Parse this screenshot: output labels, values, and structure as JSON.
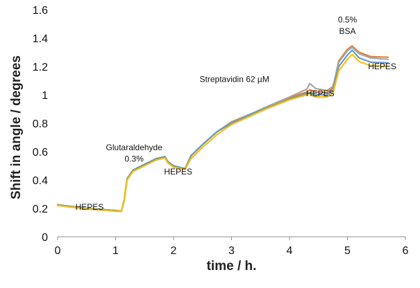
{
  "chart_data": {
    "type": "line",
    "title": "",
    "xlabel": "time / h.",
    "ylabel": "Shift in angle / degrees",
    "xlim": [
      0,
      6
    ],
    "ylim": [
      0,
      1.6
    ],
    "x_ticks": [
      "0",
      "1",
      "2",
      "3",
      "4",
      "5",
      "6"
    ],
    "y_ticks": [
      "0",
      "0.2",
      "0.4",
      "0.6",
      "0.8",
      "1",
      "1.2",
      "1.4",
      "1.6"
    ],
    "grid": false,
    "legend": "none",
    "annotations": [
      {
        "text": "HEPES",
        "x": 0.55,
        "y": 0.19
      },
      {
        "text": "Glutaraldehyde",
        "x": 1.32,
        "y": 0.61
      },
      {
        "text": "0.3%",
        "x": 1.32,
        "y": 0.53
      },
      {
        "text": "HEPES",
        "x": 2.08,
        "y": 0.44
      },
      {
        "text": "Streptavidin  62 µM",
        "x": 3.05,
        "y": 1.09
      },
      {
        "text": "HEPES",
        "x": 4.53,
        "y": 0.99
      },
      {
        "text": "0.5%",
        "x": 5.0,
        "y": 1.51
      },
      {
        "text": "BSA",
        "x": 5.0,
        "y": 1.43
      },
      {
        "text": "HEPES",
        "x": 5.6,
        "y": 1.18
      }
    ],
    "series": [
      {
        "color": "#ED7D31",
        "x": [
          0,
          0.5,
          1.0,
          1.1,
          1.15,
          1.2,
          1.3,
          1.5,
          1.7,
          1.85,
          1.9,
          2.0,
          2.2,
          2.3,
          2.5,
          2.75,
          3.0,
          3.3,
          3.6,
          4.0,
          4.3,
          4.35,
          4.45,
          4.65,
          4.75,
          4.85,
          5.0,
          5.08,
          5.2,
          5.4,
          5.7
        ],
        "y": [
          0.225,
          0.2,
          0.185,
          0.18,
          0.26,
          0.41,
          0.47,
          0.51,
          0.55,
          0.565,
          0.53,
          0.5,
          0.48,
          0.57,
          0.65,
          0.74,
          0.81,
          0.86,
          0.91,
          0.98,
          1.02,
          1.035,
          1.02,
          1.015,
          1.05,
          1.24,
          1.32,
          1.345,
          1.3,
          1.27,
          1.265
        ]
      },
      {
        "color": "#A5A5A5",
        "x": [
          0,
          0.5,
          1.0,
          1.1,
          1.15,
          1.2,
          1.3,
          1.5,
          1.7,
          1.85,
          1.9,
          2.0,
          2.2,
          2.3,
          2.5,
          2.75,
          3.0,
          3.3,
          3.6,
          4.0,
          4.3,
          4.35,
          4.45,
          4.65,
          4.75,
          4.85,
          5.0,
          5.08,
          5.2,
          5.4,
          5.7
        ],
        "y": [
          0.225,
          0.2,
          0.185,
          0.18,
          0.26,
          0.41,
          0.47,
          0.51,
          0.55,
          0.565,
          0.53,
          0.5,
          0.48,
          0.57,
          0.65,
          0.74,
          0.805,
          0.86,
          0.915,
          0.985,
          1.04,
          1.08,
          1.045,
          1.03,
          1.06,
          1.23,
          1.31,
          1.335,
          1.29,
          1.26,
          1.25
        ]
      },
      {
        "color": "#5B9BD5",
        "x": [
          0,
          0.5,
          1.0,
          1.1,
          1.15,
          1.2,
          1.3,
          1.5,
          1.7,
          1.85,
          1.9,
          2.0,
          2.2,
          2.3,
          2.5,
          2.75,
          3.0,
          3.3,
          3.6,
          4.0,
          4.3,
          4.35,
          4.45,
          4.65,
          4.75,
          4.85,
          5.0,
          5.08,
          5.2,
          5.4,
          5.7
        ],
        "y": [
          0.225,
          0.2,
          0.185,
          0.18,
          0.26,
          0.41,
          0.47,
          0.51,
          0.55,
          0.565,
          0.53,
          0.5,
          0.48,
          0.57,
          0.65,
          0.74,
          0.8,
          0.855,
          0.905,
          0.97,
          1.01,
          1.015,
          1.0,
          1.0,
          1.03,
          1.2,
          1.28,
          1.315,
          1.26,
          1.23,
          1.225
        ]
      },
      {
        "color": "#FFC000",
        "x": [
          0,
          0.5,
          1.0,
          1.1,
          1.15,
          1.2,
          1.3,
          1.5,
          1.7,
          1.85,
          1.9,
          2.0,
          2.2,
          2.3,
          2.5,
          2.75,
          3.0,
          3.3,
          3.6,
          4.0,
          4.3,
          4.35,
          4.45,
          4.65,
          4.75,
          4.85,
          5.0,
          5.08,
          5.2,
          5.4,
          5.7
        ],
        "y": [
          0.22,
          0.195,
          0.18,
          0.178,
          0.25,
          0.4,
          0.46,
          0.5,
          0.54,
          0.555,
          0.52,
          0.49,
          0.475,
          0.55,
          0.63,
          0.72,
          0.79,
          0.845,
          0.9,
          0.965,
          1.0,
          1.005,
          0.985,
          0.985,
          1.01,
          1.17,
          1.25,
          1.285,
          1.235,
          1.205,
          1.2
        ]
      }
    ]
  }
}
